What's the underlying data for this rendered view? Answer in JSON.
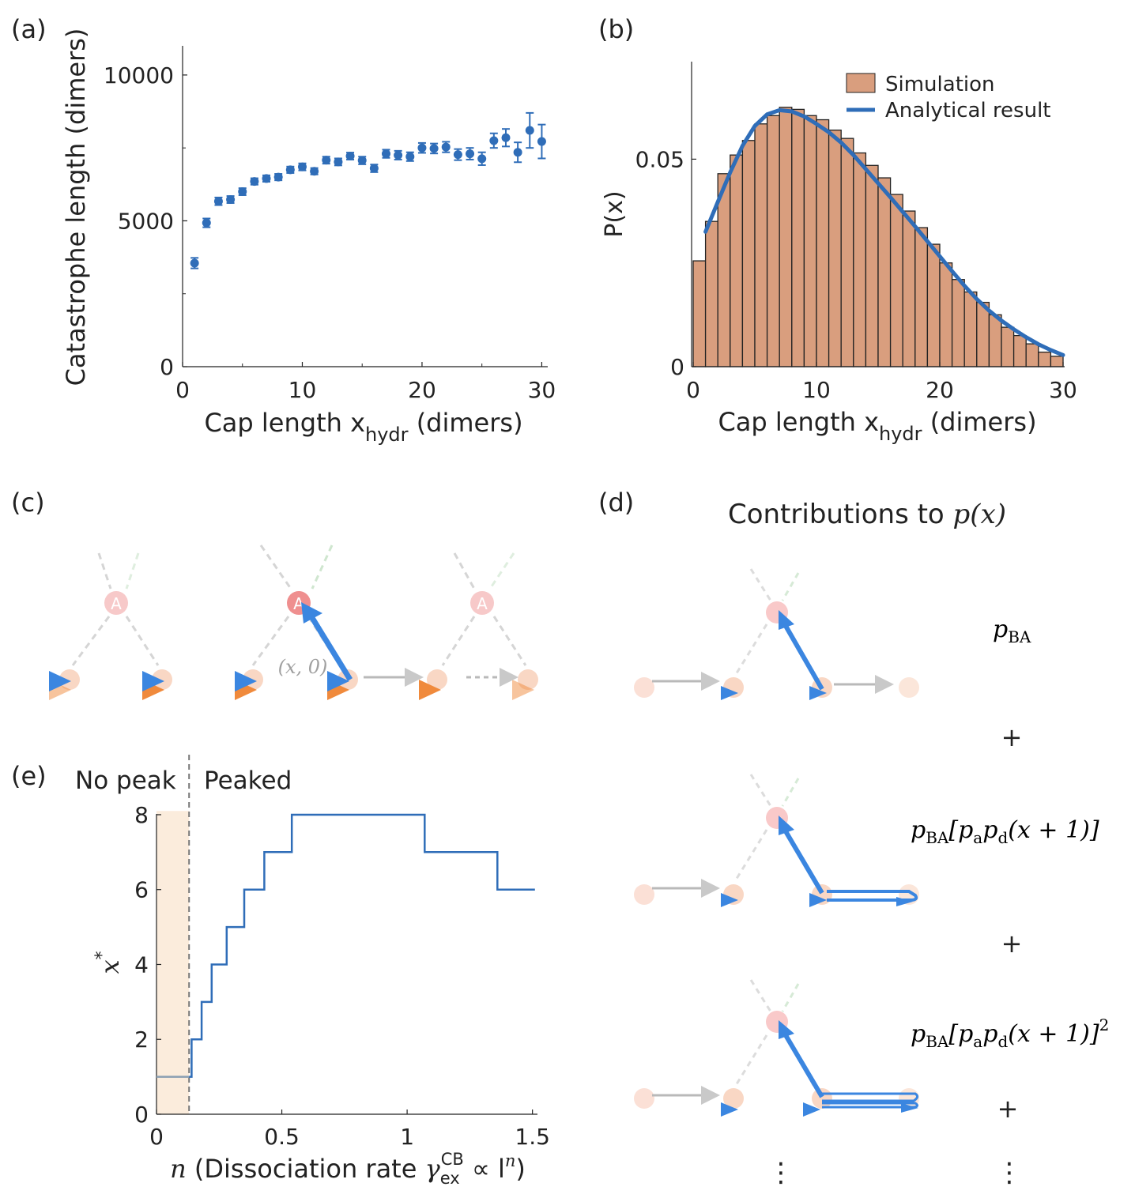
{
  "chart_data": [
    {
      "type": "scatter",
      "panel_label": "(a)",
      "xlabel": "Cap length x",
      "xlabel_sub": "hydr",
      "xlabel_suffix": " (dimers)",
      "ylabel": "Catastrophe length (dimers)",
      "xlim": [
        0,
        30.5
      ],
      "ylim": [
        0,
        11000
      ],
      "xticks": [
        0,
        10,
        20,
        30
      ],
      "yticks": [
        0,
        5000,
        10000
      ],
      "color": "#2f6db8",
      "x": [
        1,
        2,
        3,
        4,
        5,
        6,
        7,
        8,
        9,
        10,
        11,
        12,
        13,
        14,
        15,
        16,
        17,
        18,
        19,
        20,
        21,
        22,
        23,
        24,
        25,
        26,
        27,
        28,
        29,
        30
      ],
      "y": [
        3550,
        4930,
        5670,
        5730,
        6000,
        6350,
        6450,
        6500,
        6750,
        6850,
        6700,
        7080,
        7020,
        7220,
        7070,
        6800,
        7300,
        7250,
        7200,
        7500,
        7480,
        7530,
        7270,
        7300,
        7130,
        7750,
        7850,
        7350,
        8100,
        7720
      ],
      "err": [
        180,
        150,
        130,
        120,
        120,
        110,
        110,
        110,
        110,
        120,
        110,
        120,
        120,
        120,
        130,
        130,
        140,
        150,
        150,
        170,
        170,
        180,
        190,
        200,
        220,
        250,
        300,
        340,
        600,
        580
      ]
    },
    {
      "type": "histogram",
      "panel_label": "(b)",
      "xlabel": "Cap length x",
      "xlabel_sub": "hydr",
      "xlabel_suffix": " (dimers)",
      "ylabel": "P(x)",
      "xlim": [
        0,
        30
      ],
      "ylim": [
        0,
        0.0735
      ],
      "xticks": [
        0,
        10,
        20,
        30
      ],
      "ytick_values": [
        0,
        0.05
      ],
      "ytick_labels": [
        "0",
        "0.05"
      ],
      "bins": [
        [
          0,
          1
        ],
        [
          1,
          2
        ],
        [
          2,
          3
        ],
        [
          3,
          4
        ],
        [
          4,
          5
        ],
        [
          5,
          6
        ],
        [
          6,
          7
        ],
        [
          7,
          8
        ],
        [
          8,
          9
        ],
        [
          9,
          10
        ],
        [
          10,
          11
        ],
        [
          11,
          12
        ],
        [
          12,
          13
        ],
        [
          13,
          14
        ],
        [
          14,
          15
        ],
        [
          15,
          16
        ],
        [
          16,
          17
        ],
        [
          17,
          18
        ],
        [
          18,
          19
        ],
        [
          19,
          20
        ],
        [
          20,
          21
        ],
        [
          21,
          22
        ],
        [
          22,
          23
        ],
        [
          23,
          24
        ],
        [
          24,
          25
        ],
        [
          25,
          26
        ],
        [
          26,
          27
        ],
        [
          27,
          28
        ],
        [
          28,
          29
        ],
        [
          29,
          30
        ]
      ],
      "counts": [
        0.0255,
        0.035,
        0.0465,
        0.051,
        0.0545,
        0.0585,
        0.0605,
        0.0625,
        0.062,
        0.0605,
        0.0595,
        0.057,
        0.055,
        0.0515,
        0.0485,
        0.0455,
        0.0415,
        0.0375,
        0.0335,
        0.0295,
        0.025,
        0.021,
        0.018,
        0.0155,
        0.0125,
        0.0095,
        0.0075,
        0.0055,
        0.0035,
        0.0025
      ],
      "curve_x": [
        1,
        2,
        3,
        4,
        5,
        6,
        7,
        8,
        9,
        10,
        11,
        12,
        13,
        14,
        15,
        16,
        17,
        18,
        19,
        20,
        21,
        22,
        23,
        24,
        25,
        26,
        27,
        28,
        29,
        30
      ],
      "curve_y": [
        0.0325,
        0.0397,
        0.0468,
        0.0532,
        0.058,
        0.0608,
        0.0618,
        0.0615,
        0.0603,
        0.0585,
        0.0565,
        0.054,
        0.051,
        0.0476,
        0.0442,
        0.0408,
        0.0373,
        0.0338,
        0.0302,
        0.0266,
        0.023,
        0.0195,
        0.0163,
        0.0135,
        0.0111,
        0.009,
        0.0071,
        0.0054,
        0.004,
        0.0028
      ],
      "legend": [
        "Simulation",
        "Analytical result"
      ],
      "legend_position": "top-right",
      "bar_color": "#d99e7e",
      "curve_color": "#2f6db8"
    },
    {
      "type": "line",
      "panel_label": "(e)",
      "xlabel_prefix": "n",
      "xlabel_text": " (Dissociation rate ",
      "xlabel_symbol": "γ",
      "xlabel_sub": "ex",
      "xlabel_sup": "CB",
      "xlabel_tail": " ∝ l",
      "xlabel_tail_sup": "n",
      "xlabel_close": ")",
      "ylabel": "x",
      "ylabel_sup": "*",
      "xlim": [
        0,
        1.52
      ],
      "ylim": [
        0,
        8.4
      ],
      "xticks": [
        0,
        0.5,
        1,
        1.5
      ],
      "xtick_labels": [
        "0",
        "0.5",
        "1",
        "1.5"
      ],
      "yticks": [
        0,
        2,
        4,
        6,
        8
      ],
      "region_labels": {
        "left": "No peak",
        "right": "Peaked"
      },
      "threshold": 0.13,
      "shade_color": "#fbecdc",
      "line_color": "#2f6db8",
      "gray_line_color": "#8a9fb2",
      "gray_segment": {
        "x": [
          0,
          0.13
        ],
        "y": [
          1,
          1
        ]
      },
      "step_x": [
        0.13,
        0.14,
        0.18,
        0.22,
        0.28,
        0.35,
        0.43,
        0.54,
        1.07,
        1.36,
        1.51
      ],
      "step_y": [
        1,
        2,
        3,
        4,
        5,
        6,
        7,
        8,
        7,
        6,
        6
      ]
    }
  ],
  "panel_c": {
    "label": "(c)",
    "nodes": [
      "A",
      "A",
      "A"
    ],
    "coord_label": "(x, 0)"
  },
  "panel_d": {
    "label": "(d)",
    "title_text": "Contributions to ",
    "title_math": "p(x)",
    "terms": [
      "p",
      "p",
      "p"
    ],
    "term_subs": [
      "BA",
      "BA",
      "BA"
    ],
    "term_tails": [
      "",
      "[p",
      "[p"
    ],
    "term_a_sub": "a",
    "term_p2": "p",
    "term_d_sub": "d",
    "term_close_1": "(x + 1)]",
    "term_close_2": "(x + 1)]",
    "term_sup_2": "2",
    "plus": "+",
    "ellipsis": "⋮"
  }
}
